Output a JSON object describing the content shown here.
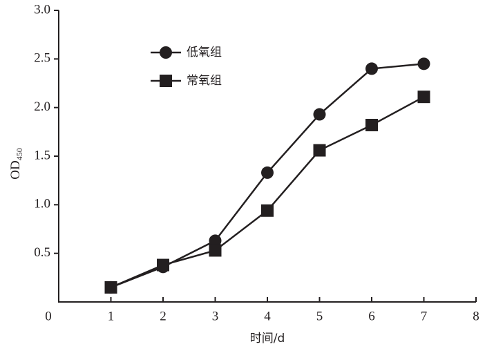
{
  "chart_data": {
    "type": "line",
    "x_label": "时间/d",
    "y_label": {
      "text": "OD",
      "subscript": "450"
    },
    "xlim": [
      0,
      8
    ],
    "xticks": [
      0,
      1,
      2,
      3,
      4,
      5,
      6,
      7,
      8
    ],
    "ylim": [
      0,
      3
    ],
    "yticks": [
      0.5,
      {
        "value": 1,
        "label": "1.0"
      },
      1.5,
      {
        "value": 2,
        "label": "2.0"
      },
      2.5,
      {
        "value": 3,
        "label": "3.0"
      }
    ],
    "grid": false,
    "legend": "upper left",
    "x": [
      1,
      2,
      3,
      4,
      5,
      6,
      7
    ],
    "series": [
      {
        "name": "低氧组",
        "color": "#231f20",
        "marker": "circle",
        "values": [
          0.15,
          0.36,
          0.63,
          1.33,
          1.93,
          2.4,
          2.45
        ]
      },
      {
        "name": "常氧组",
        "color": "#231f20",
        "marker": "square",
        "values": [
          0.15,
          0.38,
          0.53,
          0.94,
          1.56,
          1.82,
          2.11
        ]
      }
    ]
  }
}
